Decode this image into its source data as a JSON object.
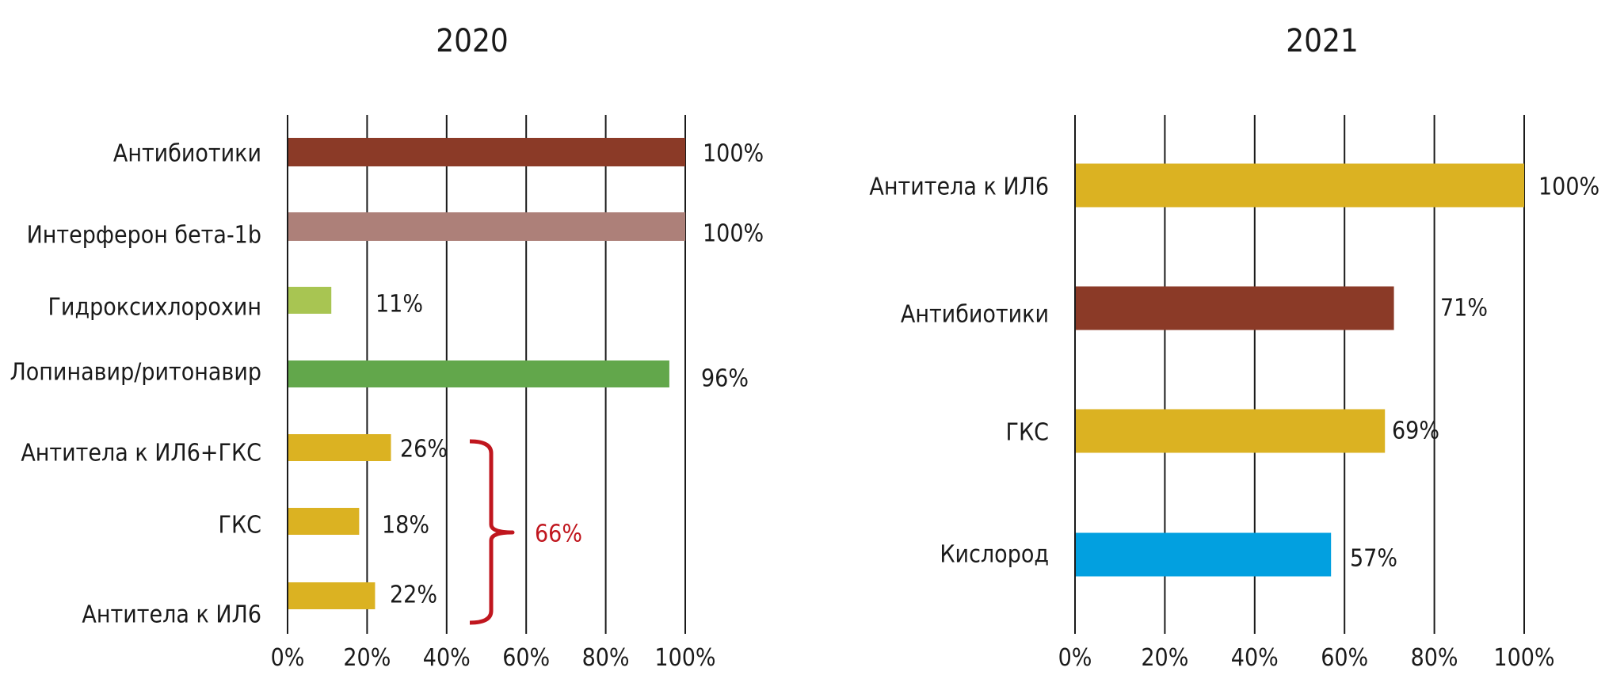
{
  "chart_data": [
    {
      "type": "bar",
      "orientation": "horizontal",
      "title": "2020",
      "xlim": [
        0,
        100
      ],
      "x_ticks": [
        "0%",
        "20%",
        "40%",
        "60%",
        "80%",
        "100%"
      ],
      "grid": true,
      "categories": [
        "Антибиотики",
        "Интерферон бета-1b",
        "Гидроксихлорохин",
        "Лопинавир/ритонавир",
        "Антитела к ИЛ6+ГКС",
        "ГКС",
        "Антитела к ИЛ6"
      ],
      "values": [
        100,
        100,
        11,
        96,
        26,
        18,
        22
      ],
      "value_labels": [
        "100%",
        "100%",
        "11%",
        "96%",
        "26%",
        "18%",
        "22%"
      ],
      "colors": [
        "#8b3a27",
        "#ad8079",
        "#a8c552",
        "#62a74b",
        "#dbb222",
        "#dbb222",
        "#dbb222"
      ],
      "annotation": {
        "label": "66%",
        "color": "#c0161e",
        "groups": [
          "Антитела к ИЛ6+ГКС",
          "ГКС",
          "Антитела к ИЛ6"
        ]
      }
    },
    {
      "type": "bar",
      "orientation": "horizontal",
      "title": "2021",
      "xlim": [
        0,
        100
      ],
      "x_ticks": [
        "0%",
        "20%",
        "40%",
        "60%",
        "80%",
        "100%"
      ],
      "grid": true,
      "categories": [
        "Антитела к ИЛ6",
        "Антибиотики",
        "ГКС",
        "Кислород"
      ],
      "values": [
        100,
        71,
        69,
        57
      ],
      "value_labels": [
        "100%",
        "71%",
        "69%",
        "57%"
      ],
      "colors": [
        "#dbb222",
        "#8b3a27",
        "#dbb222",
        "#02a0e0"
      ]
    }
  ]
}
